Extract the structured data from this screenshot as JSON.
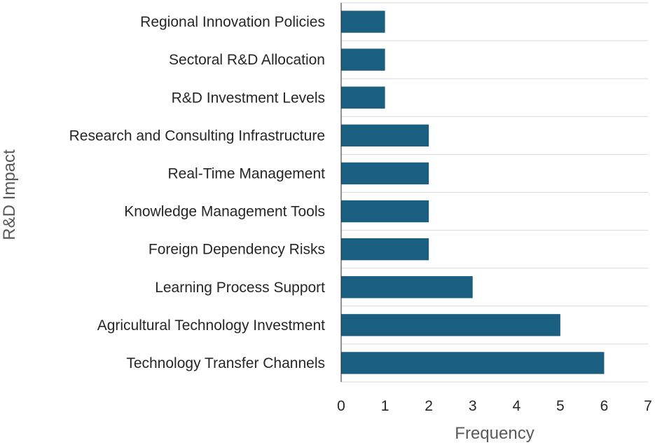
{
  "chart_data": {
    "type": "bar",
    "orientation": "horizontal",
    "categories": [
      "Regional Innovation Policies",
      "Sectoral R&D Allocation",
      "R&D Investment Levels",
      "Research and Consulting Infrastructure",
      "Real-Time Management",
      "Knowledge Management Tools",
      "Foreign Dependency Risks",
      "Learning Process Support",
      "Agricultural Technology Investment",
      "Technology Transfer Channels"
    ],
    "values": [
      1,
      1,
      1,
      2,
      2,
      2,
      2,
      3,
      5,
      6
    ],
    "xlabel": "Frequency",
    "ylabel": "R&D Impact",
    "xlim": [
      0,
      7
    ],
    "xticks": [
      "0",
      "1",
      "2",
      "3",
      "4",
      "5",
      "6",
      "7"
    ],
    "grid": "horizontal",
    "legend": "none",
    "colors": {
      "bar": "#1a5e80",
      "grid": "#d9d9d9",
      "axis": "#262626"
    }
  }
}
